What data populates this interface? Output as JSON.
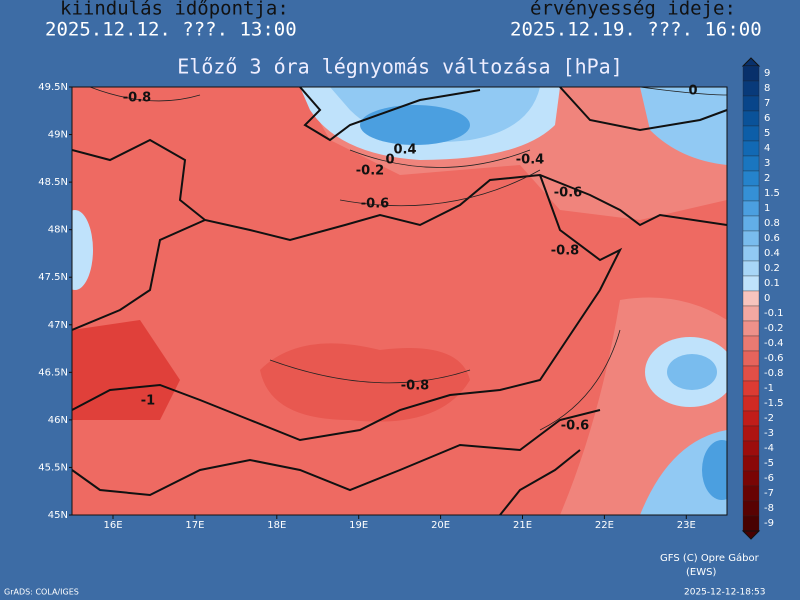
{
  "header": {
    "start_label": "kiindulás időpontja:",
    "start_time": "2025.12.12. ???. 13:00",
    "valid_label": "érvényesség ideje:",
    "valid_time": "2025.12.19. ???. 16:00"
  },
  "map": {
    "title": "Előző 3 óra légnyomás változása [hPa]",
    "lat_labels": [
      "49.5N",
      "49N",
      "48.5N",
      "48N",
      "47.5N",
      "47N",
      "46.5N",
      "46N",
      "45.5N",
      "45N"
    ],
    "lon_labels": [
      "16E",
      "17E",
      "18E",
      "19E",
      "20E",
      "21E",
      "22E",
      "23E"
    ],
    "contour_labels": [
      "-0.8",
      "0.4",
      "0",
      "-0.2",
      "-0.4",
      "-0.6",
      "-0.6",
      "-0.8",
      "-0.8",
      "-1",
      "-0.6",
      "0"
    ]
  },
  "colorbar": {
    "levels": [
      9,
      8,
      7,
      6,
      5,
      4,
      3,
      2,
      1.5,
      1,
      0.8,
      0.6,
      0.4,
      0.2,
      0.1,
      0,
      -0.1,
      -0.2,
      -0.4,
      -0.6,
      -0.8,
      -1,
      -1.5,
      -2,
      -3,
      -4,
      -5,
      -6,
      -7,
      -8,
      -9
    ],
    "colors": [
      "#08306b",
      "#083a7a",
      "#08458a",
      "#0a5299",
      "#0d5ea8",
      "#1269b4",
      "#1a76c0",
      "#2583cc",
      "#3590d6",
      "#4b9fe0",
      "#62aee8",
      "#79bcee",
      "#91c9f3",
      "#a8d6f7",
      "#bfe2fb",
      "#f7c4be",
      "#f2a8a2",
      "#ee918a",
      "#ea7a72",
      "#e6645c",
      "#e14f47",
      "#dc3b33",
      "#d02a24",
      "#c01d1a",
      "#ae1412",
      "#9c0d0d",
      "#8a0808",
      "#790505",
      "#680303",
      "#580202",
      "#480101"
    ]
  },
  "footer": {
    "credit": "GFS (C) Opre Gábor",
    "credit2": "(EWS)",
    "software": "GrADS: COLA/IGES",
    "timestamp": "2025-12-12-18:53"
  }
}
